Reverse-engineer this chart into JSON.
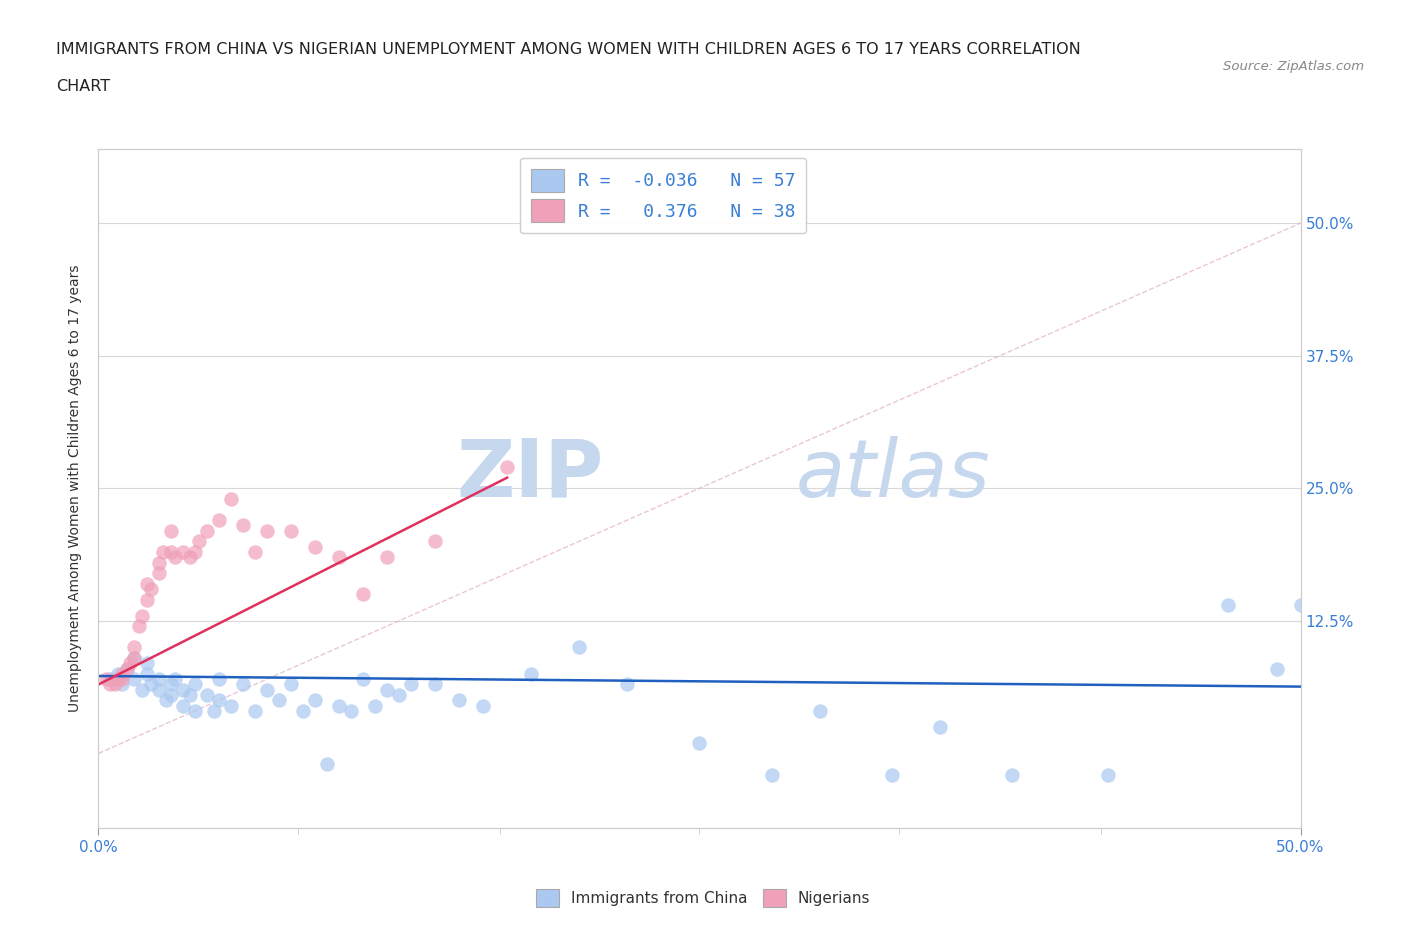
{
  "title_line1": "IMMIGRANTS FROM CHINA VS NIGERIAN UNEMPLOYMENT AMONG WOMEN WITH CHILDREN AGES 6 TO 17 YEARS CORRELATION",
  "title_line2": "CHART",
  "source": "Source: ZipAtlas.com",
  "ylabel": "Unemployment Among Women with Children Ages 6 to 17 years",
  "xlim": [
    0,
    0.5
  ],
  "ylim": [
    -0.07,
    0.57
  ],
  "china_color": "#aac8f0",
  "nigeria_color": "#f0a0b8",
  "china_R": -0.036,
  "china_N": 57,
  "nigeria_R": 0.376,
  "nigeria_N": 38,
  "china_scatter_x": [
    0.005,
    0.008,
    0.01,
    0.012,
    0.015,
    0.015,
    0.018,
    0.02,
    0.02,
    0.022,
    0.025,
    0.025,
    0.028,
    0.03,
    0.03,
    0.032,
    0.035,
    0.035,
    0.038,
    0.04,
    0.04,
    0.045,
    0.048,
    0.05,
    0.05,
    0.055,
    0.06,
    0.065,
    0.07,
    0.075,
    0.08,
    0.085,
    0.09,
    0.095,
    0.1,
    0.105,
    0.11,
    0.115,
    0.12,
    0.125,
    0.13,
    0.14,
    0.15,
    0.16,
    0.18,
    0.2,
    0.22,
    0.25,
    0.28,
    0.3,
    0.33,
    0.35,
    0.38,
    0.42,
    0.47,
    0.49,
    0.5
  ],
  "china_scatter_y": [
    0.07,
    0.075,
    0.065,
    0.08,
    0.07,
    0.09,
    0.06,
    0.075,
    0.085,
    0.065,
    0.07,
    0.06,
    0.05,
    0.065,
    0.055,
    0.07,
    0.06,
    0.045,
    0.055,
    0.065,
    0.04,
    0.055,
    0.04,
    0.07,
    0.05,
    0.045,
    0.065,
    0.04,
    0.06,
    0.05,
    0.065,
    0.04,
    0.05,
    -0.01,
    0.045,
    0.04,
    0.07,
    0.045,
    0.06,
    0.055,
    0.065,
    0.065,
    0.05,
    0.045,
    0.075,
    0.1,
    0.065,
    0.01,
    -0.02,
    0.04,
    -0.02,
    0.025,
    -0.02,
    -0.02,
    0.14,
    0.08,
    0.14
  ],
  "nigeria_scatter_x": [
    0.003,
    0.005,
    0.007,
    0.008,
    0.01,
    0.01,
    0.012,
    0.013,
    0.015,
    0.015,
    0.017,
    0.018,
    0.02,
    0.02,
    0.022,
    0.025,
    0.025,
    0.027,
    0.03,
    0.03,
    0.032,
    0.035,
    0.038,
    0.04,
    0.042,
    0.045,
    0.05,
    0.055,
    0.06,
    0.065,
    0.07,
    0.08,
    0.09,
    0.1,
    0.11,
    0.12,
    0.14,
    0.17
  ],
  "nigeria_scatter_y": [
    0.07,
    0.065,
    0.065,
    0.07,
    0.07,
    0.075,
    0.08,
    0.085,
    0.09,
    0.1,
    0.12,
    0.13,
    0.145,
    0.16,
    0.155,
    0.17,
    0.18,
    0.19,
    0.19,
    0.21,
    0.185,
    0.19,
    0.185,
    0.19,
    0.2,
    0.21,
    0.22,
    0.24,
    0.215,
    0.19,
    0.21,
    0.21,
    0.195,
    0.185,
    0.15,
    0.185,
    0.2,
    0.27
  ],
  "background_color": "#ffffff",
  "grid_color": "#d8d8d8",
  "watermark_zip": "ZIP",
  "watermark_atlas": "atlas",
  "watermark_color_zip": "#c5d8ee",
  "watermark_color_atlas": "#c5d8ee",
  "china_trend_x": [
    0.0,
    0.5
  ],
  "china_trend_y": [
    0.073,
    0.063
  ],
  "nigeria_trend_x": [
    0.0,
    0.17
  ],
  "nigeria_trend_y": [
    0.065,
    0.26
  ],
  "ref_line_x": [
    0.0,
    0.5
  ],
  "ref_line_y": [
    0.0,
    0.5
  ]
}
